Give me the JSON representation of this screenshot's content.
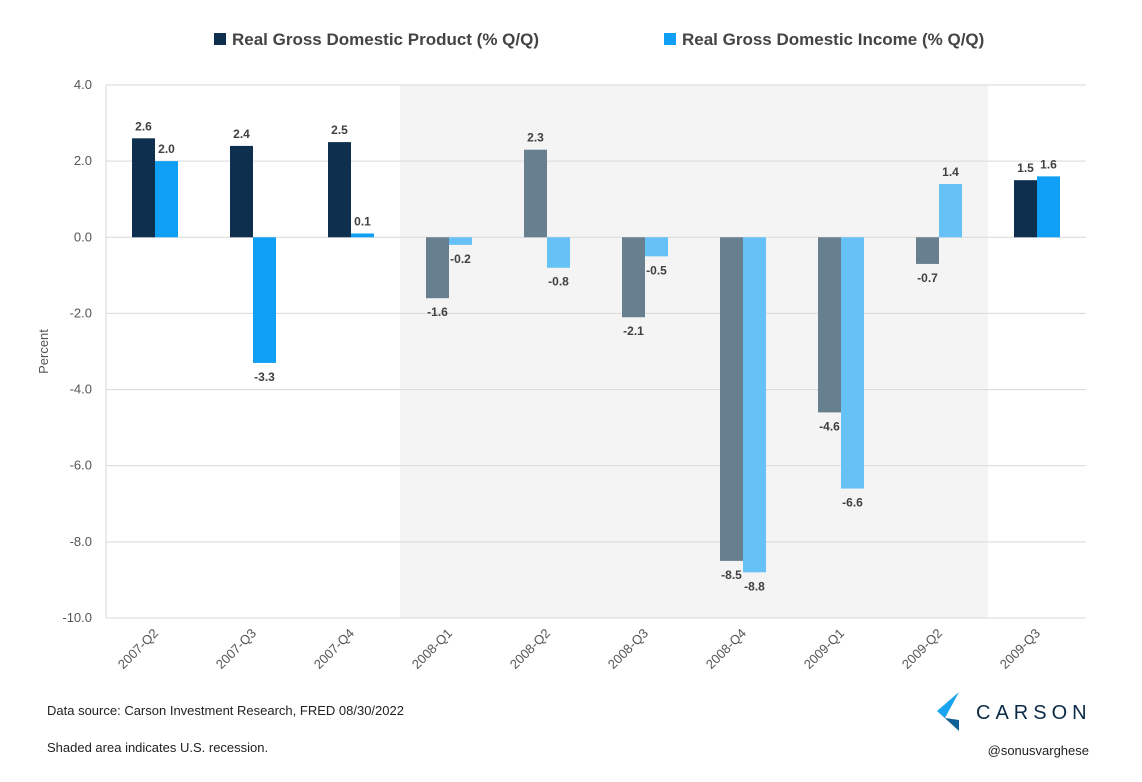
{
  "chart_data": {
    "type": "bar",
    "ylabel": "Percent",
    "ylim": [
      -10,
      4
    ],
    "yticks": [
      "4.0",
      "2.0",
      "0.0",
      "-2.0",
      "-4.0",
      "-6.0",
      "-8.0",
      "-10.0"
    ],
    "categories": [
      "2007-Q2",
      "2007-Q3",
      "2007-Q4",
      "2008-Q1",
      "2008-Q2",
      "2008-Q3",
      "2008-Q4",
      "2009-Q1",
      "2009-Q2",
      "2009-Q3"
    ],
    "series": [
      {
        "name": "Real Gross Domestic Product (% Q/Q)",
        "color": "#0e2f4d",
        "recession_color": "#687f8f",
        "values": [
          2.6,
          2.4,
          2.5,
          -1.6,
          2.3,
          -2.1,
          -8.5,
          -4.6,
          -0.7,
          1.5
        ],
        "labels": [
          "2.6",
          "2.4",
          "2.5",
          "-1.6",
          "2.3",
          "-2.1",
          "-8.5",
          "-4.6",
          "-0.7",
          "1.5"
        ]
      },
      {
        "name": "Real Gross Domestic Income (% Q/Q)",
        "color": "#0fa0f5",
        "recession_color": "#66c1f7",
        "values": [
          2.0,
          -3.3,
          0.1,
          -0.2,
          -0.8,
          -0.5,
          -8.8,
          -6.6,
          1.4,
          1.6
        ],
        "labels": [
          "2.0",
          "-3.3",
          "0.1",
          "-0.2",
          "-0.8",
          "-0.5",
          "-8.8",
          "-6.6",
          "1.4",
          "1.6"
        ]
      }
    ],
    "recession_shading": {
      "from": "2008-Q1",
      "to": "2009-Q2",
      "color": "#f4f4f4"
    },
    "grid": true,
    "legend_position": "top"
  },
  "footer": {
    "source": "Data source: Carson Investment Research, FRED   08/30/2022",
    "note": "Shaded area indicates U.S. recession.",
    "handle": "@sonusvarghese"
  },
  "brand": {
    "name": "CARSON",
    "icon": "carson-logo-icon"
  }
}
